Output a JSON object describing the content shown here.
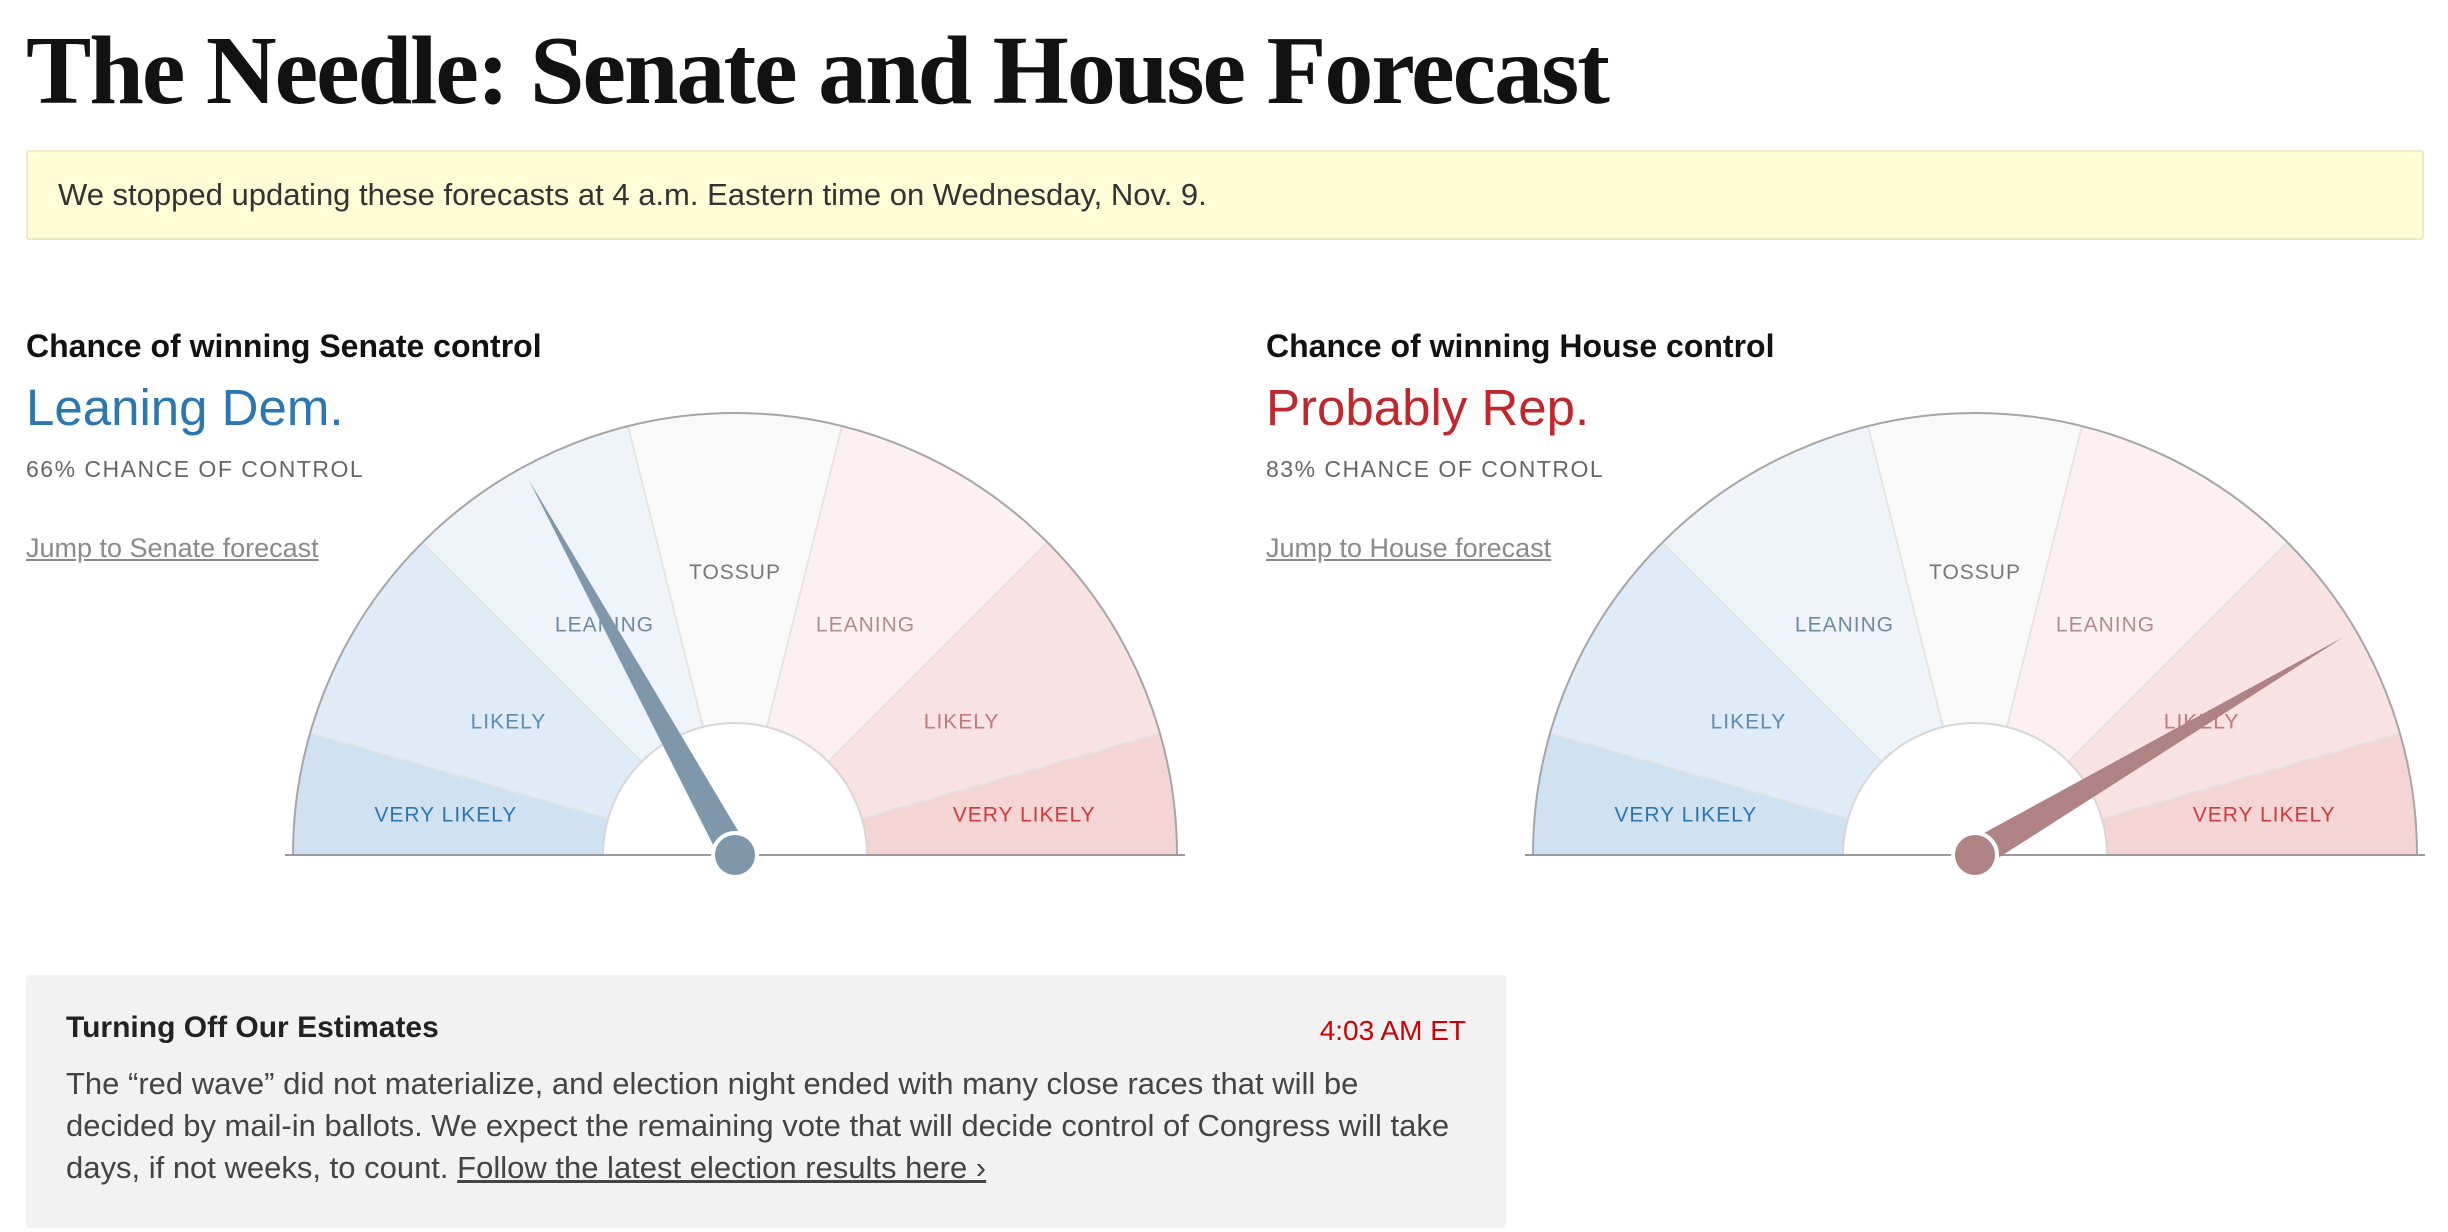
{
  "page": {
    "title": "The Needle: Senate and House Forecast"
  },
  "notice": {
    "text": "We stopped updating these forecasts at 4 a.m. Eastern time on Wednesday, Nov. 9."
  },
  "zone_labels": [
    "VERY LIKELY",
    "LIKELY",
    "LEANING",
    "TOSSUP",
    "LEANING",
    "LIKELY",
    "VERY LIKELY"
  ],
  "senate": {
    "label": "Chance of winning Senate control",
    "lean": "Leaning Dem.",
    "chance": "66% chance of control",
    "rep_probability": 0.34,
    "jump": "Jump to Senate forecast",
    "needle_color": "#7e97ab"
  },
  "house": {
    "label": "Chance of winning House control",
    "lean": "Probably Rep.",
    "chance": "83% chance of control",
    "rep_probability": 0.83,
    "jump": "Jump to House forecast",
    "needle_color": "#af8283"
  },
  "colors": {
    "dem_very_likely": "#d0e2f2",
    "dem_likely": "#dfebf6",
    "dem_leaning": "#eef4fa",
    "tossup": "#f9f9f9",
    "rep_leaning": "#fcf0f0",
    "rep_likely": "#f8e2e2",
    "rep_very_likely": "#f5d4d4",
    "dem_text_strong": "#2a77b1",
    "dem_text": "#5e8bb0",
    "dem_text_soft": "#6f8ba3",
    "tossup_text": "#777777",
    "rep_text_soft": "#b08c8f",
    "rep_text": "#c07a7d",
    "rep_text_strong": "#cc3b40"
  },
  "update": {
    "title": "Turning Off Our Estimates",
    "time": "4:03 AM ET",
    "body": "The “red wave” did not materialize, and election night ended with many close races that will be decided by mail-in ballots. We expect the remaining vote that will decide control of Congress will take days, if not weeks, to count. ",
    "link": "Follow the latest election results here ›"
  }
}
